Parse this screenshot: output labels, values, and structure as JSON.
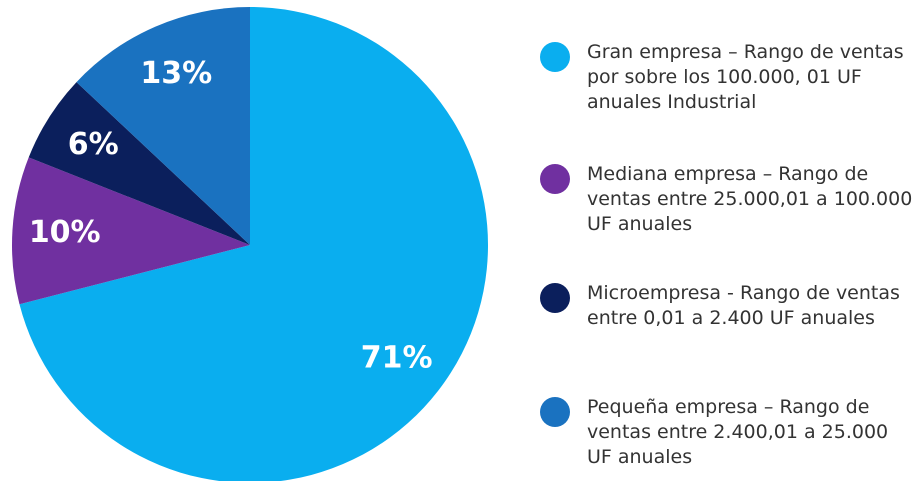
{
  "chart_data": {
    "type": "pie",
    "categories": [
      "Gran empresa – Rango de ventas por sobre los 100.000, 01 UF anuales Industrial",
      "Mediana empresa – Rango de ventas entre 25.000,01 a 100.000 UF anuales",
      "Microempresa - Rango de ventas entre 0,01 a 2.400 UF anuales",
      "Pequeña empresa – Rango de ventas entre 2.400,01 a 25.000 UF anuales"
    ],
    "values": [
      71,
      10,
      6,
      13
    ],
    "value_labels": [
      "71%",
      "10%",
      "6%",
      "13%"
    ],
    "colors": [
      "#0aaeef",
      "#7030a0",
      "#0b1f5c",
      "#1a72c0"
    ],
    "legend": "right"
  }
}
